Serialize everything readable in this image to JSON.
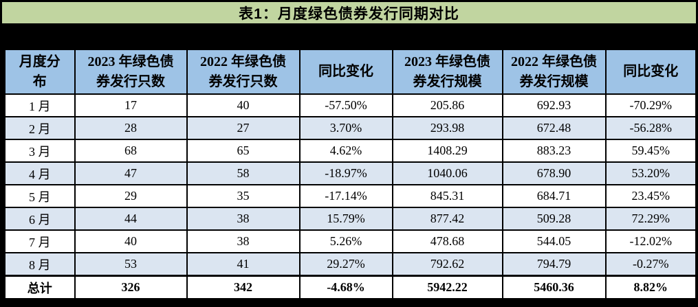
{
  "title": "表1：月度绿色债券发行同期对比",
  "chart_data": {
    "type": "table",
    "title": "表1：月度绿色债券发行同期对比",
    "columns": [
      "月度分布",
      "2023 年绿色债券发行只数",
      "2022 年绿色债券发行只数",
      "同比变化",
      "2023 年绿色债券发行规模",
      "2022 年绿色债券发行规模",
      "同比变化"
    ],
    "rows": [
      [
        "1 月",
        "17",
        "40",
        "-57.50%",
        "205.86",
        "692.93",
        "-70.29%"
      ],
      [
        "2 月",
        "28",
        "27",
        "3.70%",
        "293.98",
        "672.48",
        "-56.28%"
      ],
      [
        "3 月",
        "68",
        "65",
        "4.62%",
        "1408.29",
        "883.23",
        "59.45%"
      ],
      [
        "4 月",
        "47",
        "58",
        "-18.97%",
        "1040.06",
        "678.90",
        "53.20%"
      ],
      [
        "5 月",
        "29",
        "35",
        "-17.14%",
        "845.31",
        "684.71",
        "23.45%"
      ],
      [
        "6 月",
        "44",
        "38",
        "15.79%",
        "877.42",
        "509.28",
        "72.29%"
      ],
      [
        "7 月",
        "40",
        "38",
        "5.26%",
        "478.68",
        "544.05",
        "-12.02%"
      ],
      [
        "8 月",
        "53",
        "41",
        "29.27%",
        "792.62",
        "794.79",
        "-0.27%"
      ]
    ],
    "total_row": [
      "总计",
      "326",
      "342",
      "-4.68%",
      "5942.22",
      "5460.36",
      "8.82%"
    ],
    "layout": {
      "grid": "on",
      "row_striping": "alternate light blue",
      "total_row_bold": true
    }
  },
  "colors": {
    "title_bg": "#c1d5a0",
    "header_bg": "#9ec3e6",
    "row_alt_bg": "#dbe5f1",
    "row_bg": "#ffffff",
    "border": "#000000",
    "text": "#000000",
    "frame_bg": "#000000"
  }
}
